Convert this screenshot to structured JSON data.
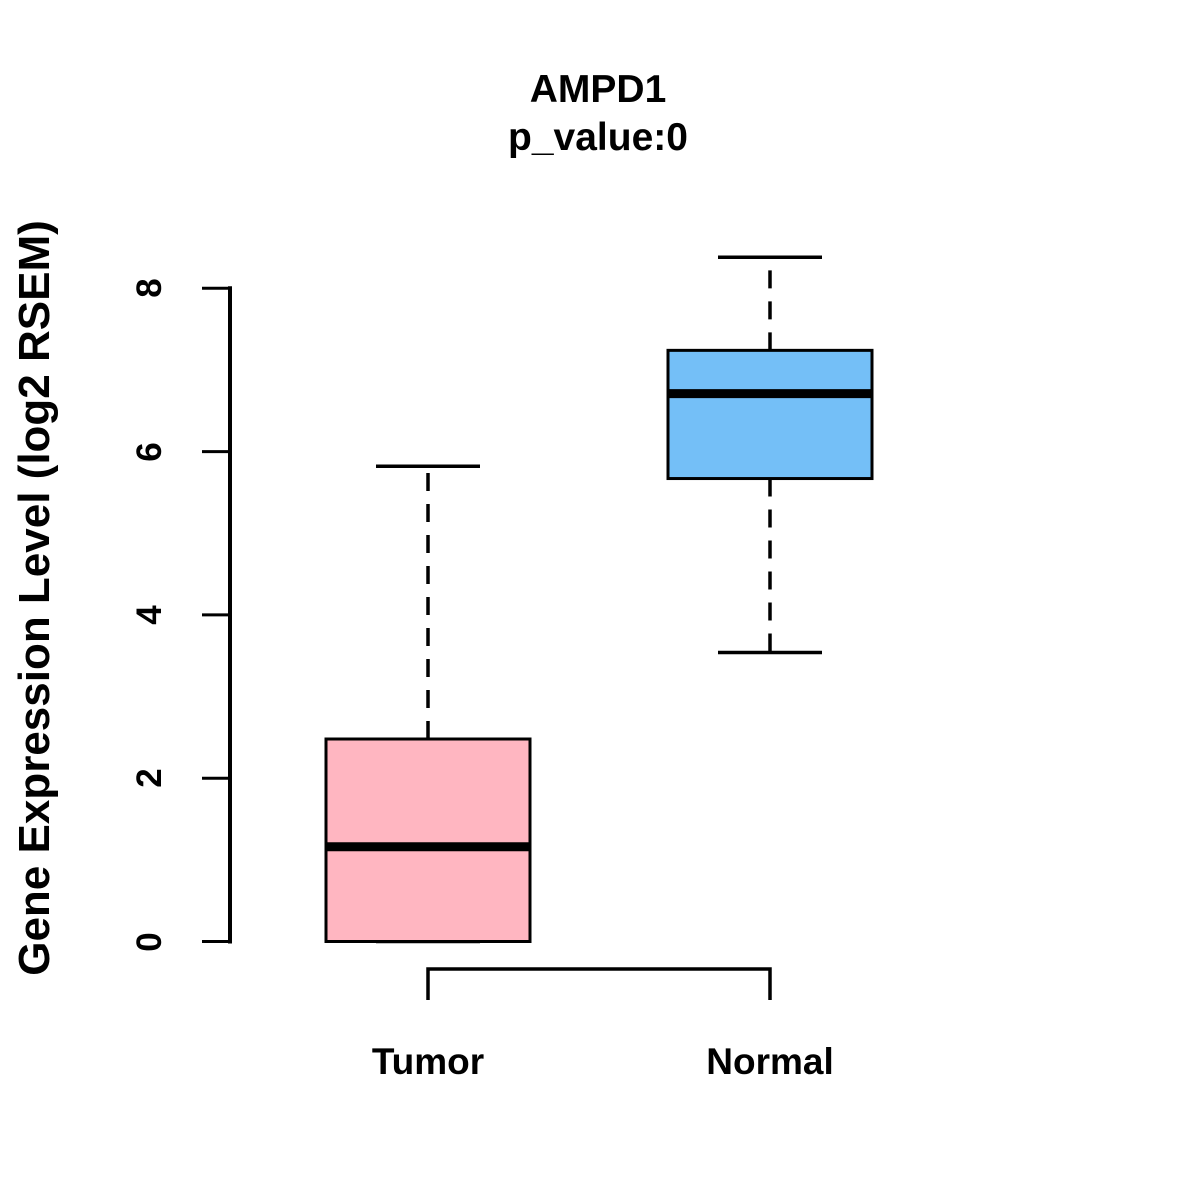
{
  "chart_data": {
    "type": "boxplot",
    "title": "AMPD1",
    "subtitle": "p_value:0",
    "ylabel": "Gene Expression Level (log2 RSEM)",
    "xlabel": "",
    "ylim": [
      0,
      8.4
    ],
    "yticks": [
      0,
      2,
      4,
      6,
      8
    ],
    "grid": false,
    "legend": "none",
    "categories": [
      "Tumor",
      "Normal"
    ],
    "groups": [
      {
        "label": "Tumor",
        "fill_color": "#FFB6C1",
        "whisker_low": 0,
        "q1": 0,
        "median": 1.16,
        "q3": 2.48,
        "whisker_high": 5.82
      },
      {
        "label": "Normal",
        "fill_color": "#74BFF7",
        "whisker_low": 3.54,
        "q1": 5.67,
        "median": 6.71,
        "q3": 7.24,
        "whisker_high": 8.38
      }
    ],
    "annotations": {
      "comparison_bracket": {
        "between": [
          "Tumor",
          "Normal"
        ]
      }
    },
    "styles": {
      "box_border_color": "#000000",
      "whisker_style": "dashed"
    }
  }
}
